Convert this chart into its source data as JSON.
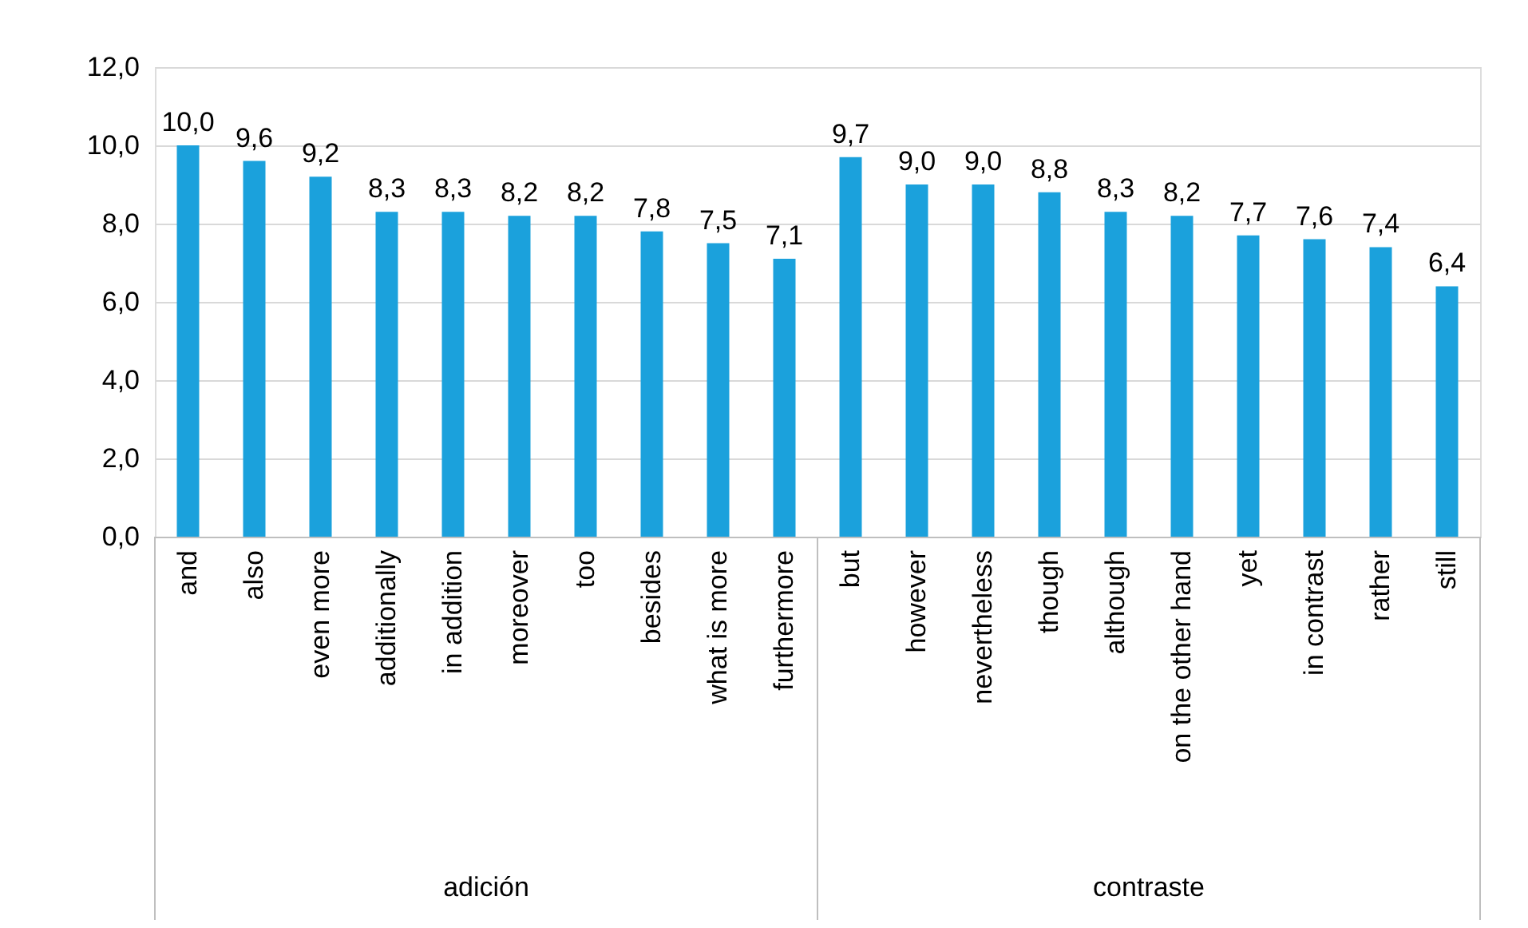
{
  "chart_data": {
    "type": "bar",
    "categories": [
      "and",
      "also",
      "even more",
      "additionally",
      "in addition",
      "moreover",
      "too",
      "besides",
      "what is more",
      "furthermore",
      "but",
      "however",
      "nevertheless",
      "though",
      "although",
      "on the other hand",
      "yet",
      "in contrast",
      "rather",
      "still"
    ],
    "values": [
      10.0,
      9.6,
      9.2,
      8.3,
      8.3,
      8.2,
      8.2,
      7.8,
      7.5,
      7.1,
      9.7,
      9.0,
      9.0,
      8.8,
      8.3,
      8.2,
      7.7,
      7.6,
      7.4,
      6.4
    ],
    "value_labels": [
      "10,0",
      "9,6",
      "9,2",
      "8,3",
      "8,3",
      "8,2",
      "8,2",
      "7,8",
      "7,5",
      "7,1",
      "9,7",
      "9,0",
      "9,0",
      "8,8",
      "8,3",
      "8,2",
      "7,7",
      "7,6",
      "7,4",
      "6,4"
    ],
    "color": "#1ba1dc",
    "ylim": [
      0,
      12
    ],
    "yticks": [
      {
        "value": 0,
        "label": "0,0"
      },
      {
        "value": 2,
        "label": "2,0"
      },
      {
        "value": 4,
        "label": "4,0"
      },
      {
        "value": 6,
        "label": "6,0"
      },
      {
        "value": 8,
        "label": "8,0"
      },
      {
        "value": 10,
        "label": "10,0"
      },
      {
        "value": 12,
        "label": "12,0"
      }
    ],
    "grid": "y",
    "annotations": [
      "adición",
      "contraste"
    ]
  }
}
